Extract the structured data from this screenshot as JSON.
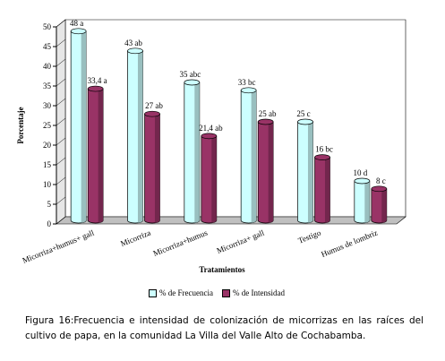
{
  "chart_data": {
    "type": "bar",
    "style": "3d-cylinder",
    "categories": [
      "Micorriza+humus+ gall",
      "Micorriza",
      "Micorriza+humus",
      "Micorriza+ gall",
      "Testigo",
      "Humus de lombriz"
    ],
    "series": [
      {
        "name": "% de Frecuencia",
        "color": "#ccffff",
        "values": [
          48,
          43,
          35,
          33,
          25,
          10
        ],
        "labels": [
          "48 a",
          "43 ab",
          "35 abc",
          "33 bc",
          "25 c",
          "10 d"
        ]
      },
      {
        "name": "% de Intensidad",
        "color": "#993366",
        "values": [
          33.4,
          27,
          21.4,
          25,
          16,
          8
        ],
        "labels": [
          "33,4 a",
          "27 ab",
          "21,4 ab",
          "25 ab",
          "16 bc",
          "8 c"
        ]
      }
    ],
    "xlabel": "Tratamientos",
    "ylabel": "Porcentaje",
    "ylim": [
      0,
      50
    ],
    "yticks": [
      "0",
      "5",
      "10",
      "15",
      "20",
      "25",
      "30",
      "35",
      "40",
      "45",
      "50"
    ],
    "grid": false,
    "legend_position": "bottom"
  },
  "caption": {
    "lead": "Figura 16:",
    "text": "Frecuencia e intensidad de colonización de micorrizas en las raíces del cultivo de papa, en la comunidad La Villa del Valle Alto de Cochabamba."
  }
}
